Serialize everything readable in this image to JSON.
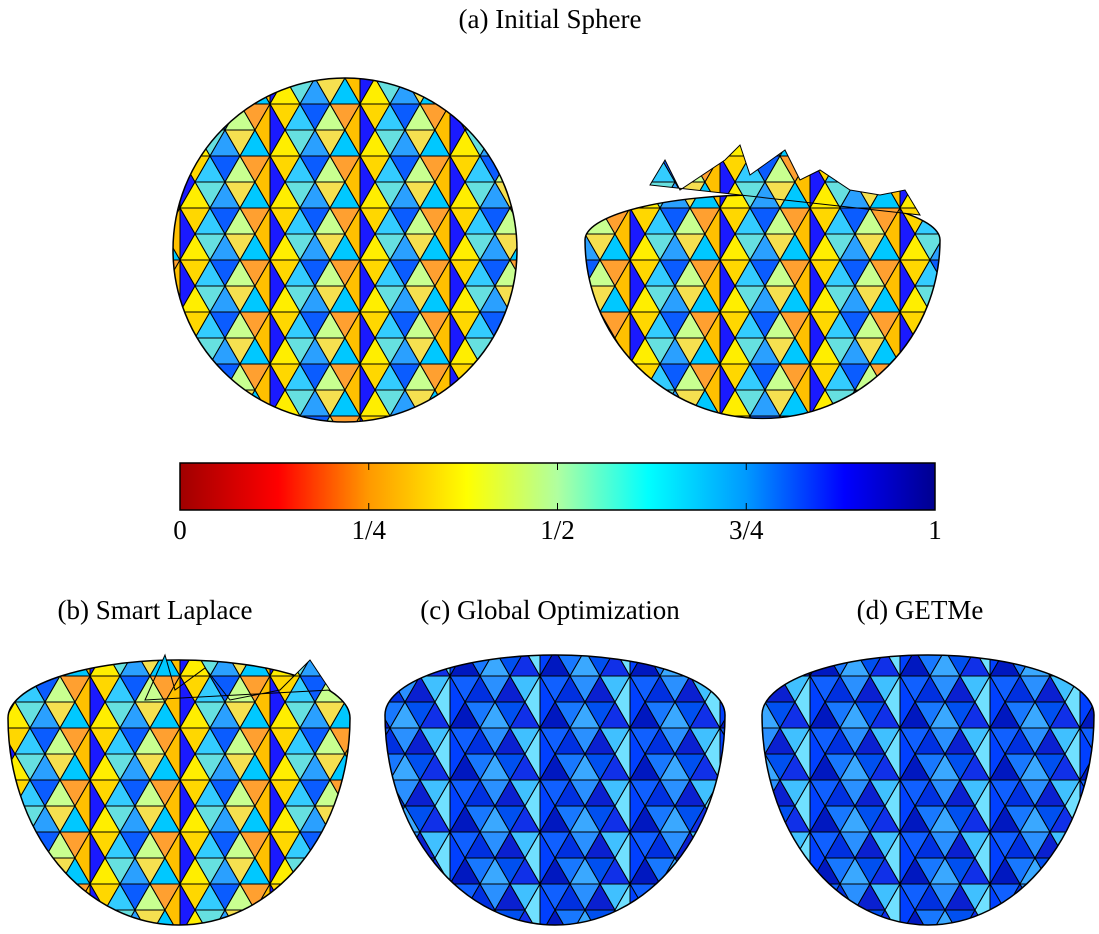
{
  "panels": [
    {
      "title": "(a) Initial Sphere"
    },
    {
      "title": "(b) Smart Laplace"
    },
    {
      "title": "(c) Global Optimization"
    },
    {
      "title": "(d) GETMe"
    }
  ],
  "colorbar": {
    "lim": [
      0,
      1
    ],
    "ticks": [
      0,
      {
        "value": 0.25,
        "label": "1/4"
      },
      {
        "value": 0.5,
        "label": "1/2"
      },
      {
        "value": 0.75,
        "label": "3/4"
      },
      1
    ]
  }
}
